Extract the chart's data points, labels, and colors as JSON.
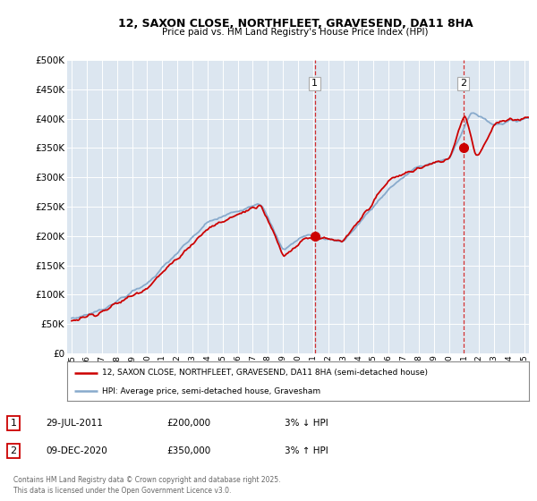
{
  "title": "12, SAXON CLOSE, NORTHFLEET, GRAVESEND, DA11 8HA",
  "subtitle": "Price paid vs. HM Land Registry's House Price Index (HPI)",
  "legend_line1": "12, SAXON CLOSE, NORTHFLEET, GRAVESEND, DA11 8HA (semi-detached house)",
  "legend_line2": "HPI: Average price, semi-detached house, Gravesham",
  "annotation1": {
    "label": "1",
    "date": "29-JUL-2011",
    "price": "£200,000",
    "hpi": "3% ↓ HPI",
    "x_year": 2011.1
  },
  "annotation2": {
    "label": "2",
    "date": "09-DEC-2020",
    "price": "£350,000",
    "hpi": "3% ↑ HPI",
    "x_year": 2020.95
  },
  "footer": "Contains HM Land Registry data © Crown copyright and database right 2025.\nThis data is licensed under the Open Government Licence v3.0.",
  "red_color": "#cc0000",
  "blue_color": "#88aacc",
  "bg_color": "#dce6f0",
  "ylim": [
    0,
    500000
  ],
  "xlim_start": 1994.7,
  "xlim_end": 2025.3,
  "yticks": [
    0,
    50000,
    100000,
    150000,
    200000,
    250000,
    300000,
    350000,
    400000,
    450000,
    500000
  ],
  "xticks": [
    1995,
    1996,
    1997,
    1998,
    1999,
    2000,
    2001,
    2002,
    2003,
    2004,
    2005,
    2006,
    2007,
    2008,
    2009,
    2010,
    2011,
    2012,
    2013,
    2014,
    2015,
    2016,
    2017,
    2018,
    2019,
    2020,
    2021,
    2022,
    2023,
    2024,
    2025
  ],
  "marker1_y": 200000,
  "marker2_y": 350000
}
